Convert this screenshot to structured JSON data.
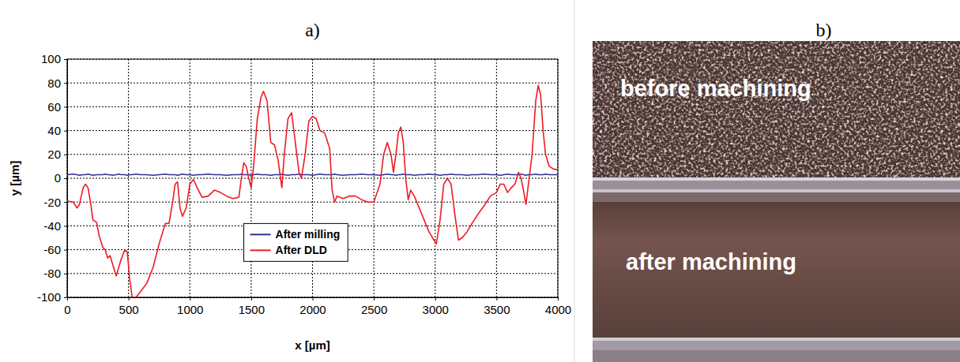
{
  "chart_data": {
    "type": "line",
    "title": "a)",
    "x_label": "x [µm]",
    "y_label": "y [µm]",
    "x": [
      0,
      50,
      80,
      100,
      130,
      150,
      170,
      190,
      210,
      240,
      260,
      290,
      310,
      330,
      350,
      370,
      400,
      420,
      440,
      470,
      490,
      510,
      530,
      560,
      600,
      650,
      700,
      750,
      800,
      830,
      860,
      880,
      900,
      920,
      940,
      970,
      1000,
      1030,
      1060,
      1100,
      1150,
      1200,
      1250,
      1300,
      1350,
      1400,
      1420,
      1440,
      1460,
      1480,
      1500,
      1520,
      1550,
      1580,
      1600,
      1630,
      1660,
      1690,
      1720,
      1750,
      1770,
      1800,
      1830,
      1860,
      1890,
      1910,
      1940,
      1970,
      2000,
      2030,
      2060,
      2100,
      2140,
      2160,
      2180,
      2200,
      2250,
      2300,
      2350,
      2400,
      2450,
      2500,
      2550,
      2580,
      2610,
      2640,
      2660,
      2680,
      2700,
      2720,
      2740,
      2760,
      2780,
      2800,
      2830,
      2870,
      2910,
      2950,
      2990,
      3010,
      3040,
      3070,
      3100,
      3130,
      3160,
      3190,
      3220,
      3260,
      3300,
      3350,
      3400,
      3450,
      3500,
      3530,
      3560,
      3590,
      3620,
      3650,
      3680,
      3700,
      3720,
      3740,
      3760,
      3790,
      3820,
      3840,
      3860,
      3880,
      3900,
      3930,
      3960,
      4000
    ],
    "series": [
      {
        "name": "After milling",
        "color": "#2e3192",
        "values": [
          3,
          3.5,
          3,
          2.5,
          3,
          3,
          3.5,
          3,
          2.5,
          3,
          3,
          3,
          3.5,
          3,
          3,
          2.5,
          3,
          3.5,
          3,
          3,
          2.5,
          3,
          3,
          3.5,
          3,
          3,
          2.5,
          3,
          3.5,
          3,
          3,
          3,
          2.5,
          3,
          3.5,
          3,
          3,
          2.5,
          3,
          3,
          3.5,
          3,
          3,
          2.5,
          3,
          3,
          3.5,
          3,
          3,
          3,
          2.5,
          3,
          3.5,
          3,
          3,
          3,
          2.5,
          3,
          3,
          3.5,
          3,
          2.5,
          3,
          3,
          3.5,
          3,
          3,
          3,
          2.5,
          3,
          3.5,
          3,
          3,
          3,
          3.5,
          3,
          2.5,
          3,
          3,
          3.5,
          3,
          3,
          2.5,
          3,
          3.5,
          3,
          3,
          2.5,
          3,
          3,
          3.5,
          3,
          3,
          3,
          2.5,
          3,
          3,
          3.5,
          3,
          3,
          2.5,
          3,
          3,
          3.5,
          3,
          3,
          3,
          2.5,
          3,
          3,
          3.5,
          3,
          3,
          2.5,
          3,
          3.5,
          3,
          3,
          3,
          3.5,
          3,
          2.5,
          3,
          3,
          3.5,
          3,
          3,
          3,
          3.5,
          3,
          3,
          3
        ]
      },
      {
        "name": "After DLD",
        "color": "#ed1c24",
        "values": [
          -19,
          -20,
          -25,
          -22,
          -8,
          -5,
          -8,
          -20,
          -35,
          -37,
          -48,
          -58,
          -60,
          -67,
          -65,
          -72,
          -82,
          -75,
          -68,
          -60,
          -62,
          -85,
          -100,
          -100,
          -95,
          -88,
          -75,
          -55,
          -38,
          -38,
          -20,
          -5,
          -3,
          -25,
          -32,
          -25,
          -5,
          -1,
          -8,
          -16,
          -15,
          -10,
          -12,
          -15,
          -17,
          -16,
          0,
          13,
          10,
          0,
          -8,
          10,
          50,
          68,
          73,
          65,
          30,
          28,
          15,
          -8,
          20,
          50,
          55,
          30,
          5,
          0,
          20,
          48,
          52,
          50,
          40,
          38,
          25,
          -10,
          -20,
          -15,
          -17,
          -15,
          -15,
          -18,
          -20,
          -20,
          -5,
          20,
          30,
          20,
          5,
          20,
          38,
          43,
          30,
          0,
          -18,
          -10,
          -15,
          -25,
          -35,
          -45,
          -52,
          -55,
          -35,
          -5,
          0,
          -5,
          -30,
          -52,
          -50,
          -45,
          -38,
          -30,
          -23,
          -15,
          -12,
          -5,
          -5,
          -12,
          -8,
          -5,
          5,
          0,
          -10,
          -22,
          -5,
          20,
          65,
          78,
          70,
          40,
          20,
          10,
          8,
          7
        ]
      }
    ],
    "xlim": [
      0,
      4000
    ],
    "xticks": [
      0,
      500,
      1000,
      1500,
      2000,
      2500,
      3000,
      3500,
      4000
    ],
    "ylim": [
      -100,
      100
    ],
    "yticks": [
      -100,
      -80,
      -60,
      -40,
      -20,
      0,
      20,
      40,
      60,
      80,
      100
    ],
    "grid": true,
    "legend": "center"
  },
  "photo": {
    "title": "b)",
    "labels": [
      "before machining",
      "after machining"
    ]
  }
}
